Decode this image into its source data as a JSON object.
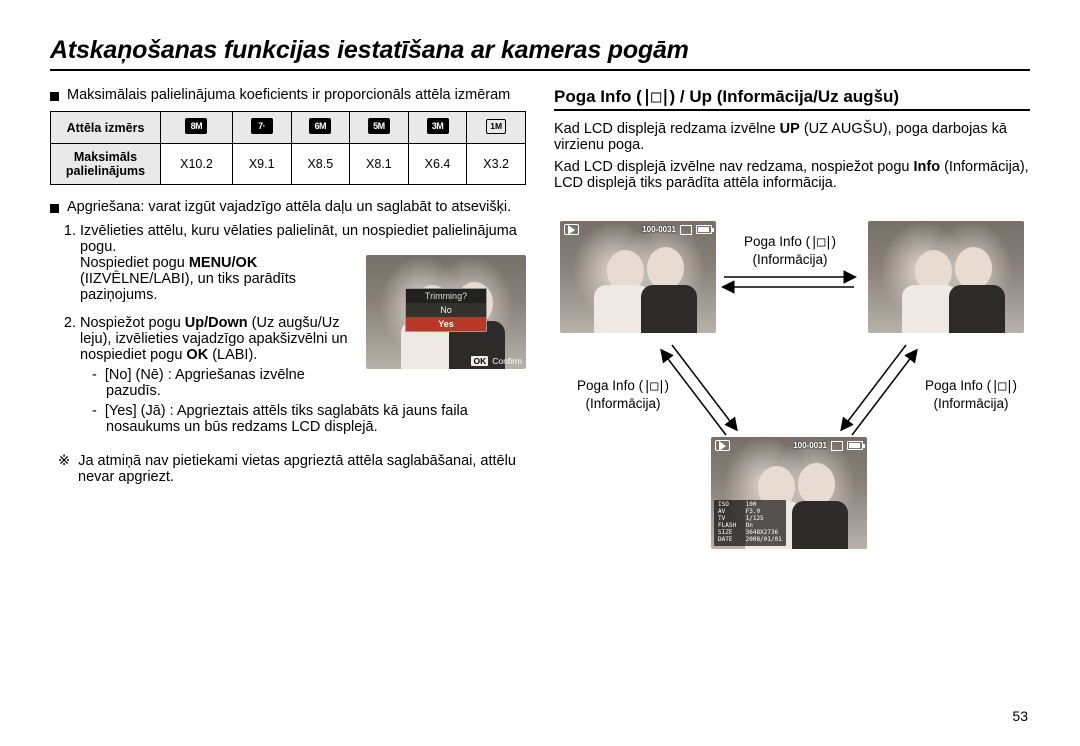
{
  "title": "Atskaņošanas funkcijas iestatīšana ar kameras pogām",
  "left": {
    "intro": "Maksimālais palielinājuma koeficients ir proporcionāls attēla izmēram",
    "table": {
      "row1_label": "Attēla izmērs",
      "row2_label": "Maksimāls palielinājums",
      "chips": [
        "8M",
        "7·",
        "6M",
        "5M",
        "3M",
        "1M"
      ],
      "values": [
        "X10.2",
        "X9.1",
        "X8.5",
        "X8.1",
        "X6.4",
        "X3.2"
      ]
    },
    "bullet2": "Apgriešana: varat izgūt vajadzīgo attēla daļu un saglabāt to atsevišķi.",
    "step1_a": "Izvēlieties attēlu, kuru vēlaties palielināt, un nospiediet palielinājuma pogu.",
    "step1_b1": "Nospiediet pogu ",
    "step1_b1_bold": "MENU/OK",
    "step1_b2": " (IIZVĒLNE/LABI), un tiks parādīts paziņojums.",
    "step2_a": "Nospiežot pogu ",
    "step2_a_bold": "Up/Down",
    "step2_b": " (Uz augšu/Uz leju), izvēlieties vajadzīgo apakšizvēlni un nospiediet pogu ",
    "step2_b_bold": "OK",
    "step2_c": " (LABI).",
    "sub_no": "[No] (Nē) : Apgriešanas izvēlne pazudīs.",
    "sub_yes": "[Yes] (Jā) : Apgrieztais attēls tiks saglabāts kā jauns faila nosaukums un būs redzams LCD displejā.",
    "clover": "Ja atmiņā nav pietiekami vietas apgrieztā attēla saglabāšanai, attēlu nevar apgriezt.",
    "shot": {
      "trim_title": "Trimming?",
      "trim_no": "No",
      "trim_yes": "Yes",
      "confirm": "Confirm"
    }
  },
  "right": {
    "heading_a": "Poga Info (",
    "heading_b": ") / Up (Informācija/Uz augšu)",
    "p1a": "Kad LCD displejā redzama izvēlne ",
    "p1b_bold": "UP",
    "p1c": " (UZ AUGŠU), poga darbojas kā virzienu poga.",
    "p2a": "Kad LCD displejā izvēlne nav redzama, nospiežot pogu ",
    "p2b_bold": "Info",
    "p2c": " (Informācija), LCD displejā tiks parādīta attēla informācija.",
    "label_line1": "Poga Info (",
    "label_line2": "(Informācija)",
    "osd_counter": "100-0031",
    "info_rows": [
      [
        "ISO",
        "100"
      ],
      [
        "AV",
        "F3.0"
      ],
      [
        "TV",
        "1/125"
      ],
      [
        "FLASH",
        "On"
      ],
      [
        "SIZE",
        "3648X2736"
      ],
      [
        "DATE",
        "2008/01/01"
      ]
    ]
  },
  "page_number": "53"
}
